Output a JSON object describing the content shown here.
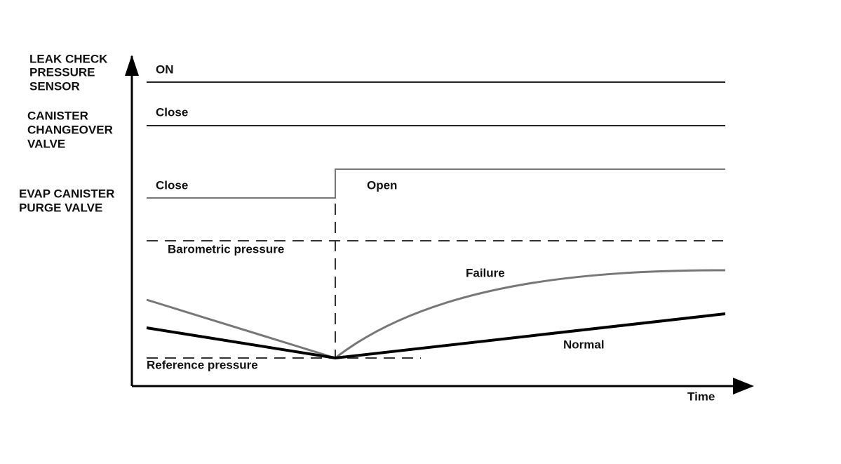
{
  "signals": [
    {
      "label_lines": [
        "LEAK CHECK",
        "PRESSURE",
        "SENSOR"
      ],
      "state": "ON"
    },
    {
      "label_lines": [
        "CANISTER",
        "CHANGEOVER",
        "VALVE"
      ],
      "state": "Close"
    },
    {
      "label_lines": [
        "EVAP CANISTER",
        "PURGE VALVE"
      ],
      "state_before": "Close",
      "state_after": "Open"
    }
  ],
  "pressure": {
    "barometric": "Barometric pressure",
    "reference": "Reference pressure",
    "failure": "Failure",
    "normal": "Normal"
  },
  "x_axis": "Time"
}
